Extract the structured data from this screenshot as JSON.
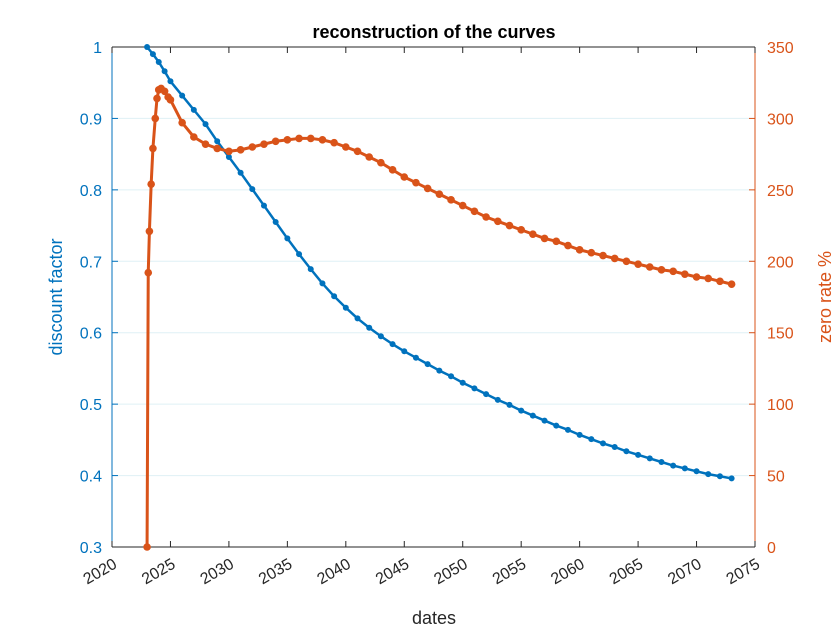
{
  "chart_data": {
    "type": "line",
    "title": "reconstruction of the curves",
    "xlabel": "dates",
    "ylabel_left": "discount factor",
    "ylabel_right": "zero rate %",
    "xlim": [
      2020,
      2075
    ],
    "ylim_left": [
      0.3,
      1
    ],
    "ylim_right": [
      0,
      350
    ],
    "xticks": [
      "2020",
      "2025",
      "2030",
      "2035",
      "2040",
      "2045",
      "2050",
      "2055",
      "2060",
      "2065",
      "2070",
      "2075"
    ],
    "yticks_left": [
      "0.3",
      "0.4",
      "0.5",
      "0.6",
      "0.7",
      "0.8",
      "0.9",
      "1"
    ],
    "yticks_right": [
      "0",
      "50",
      "100",
      "150",
      "200",
      "250",
      "300",
      "350"
    ],
    "grid": "horizontal",
    "colors": {
      "left": "#0072BD",
      "right": "#D95319"
    },
    "series": [
      {
        "axis": "left",
        "x": [
          2023.0,
          2023.5,
          2024.0,
          2024.5,
          2025.0,
          2026.0,
          2027.0,
          2028.0,
          2029.0,
          2030.0,
          2031.0,
          2032.0,
          2033.0,
          2034.0,
          2035.0,
          2036.0,
          2037.0,
          2038.0,
          2039.0,
          2040.0,
          2041.0,
          2042.0,
          2043.0,
          2044.0,
          2045.0,
          2046.0,
          2047.0,
          2048.0,
          2049.0,
          2050.0,
          2051.0,
          2052.0,
          2053.0,
          2054.0,
          2055.0,
          2056.0,
          2057.0,
          2058.0,
          2059.0,
          2060.0,
          2061.0,
          2062.0,
          2063.0,
          2064.0,
          2065.0,
          2066.0,
          2067.0,
          2068.0,
          2069.0,
          2070.0,
          2071.0,
          2072.0,
          2073.0
        ],
        "values": [
          1.0,
          0.99,
          0.979,
          0.966,
          0.952,
          0.932,
          0.912,
          0.892,
          0.868,
          0.846,
          0.824,
          0.801,
          0.778,
          0.755,
          0.732,
          0.71,
          0.689,
          0.669,
          0.651,
          0.635,
          0.62,
          0.607,
          0.595,
          0.584,
          0.574,
          0.565,
          0.556,
          0.547,
          0.539,
          0.53,
          0.522,
          0.514,
          0.506,
          0.499,
          0.491,
          0.484,
          0.477,
          0.47,
          0.464,
          0.457,
          0.451,
          0.445,
          0.44,
          0.434,
          0.429,
          0.424,
          0.419,
          0.414,
          0.41,
          0.406,
          0.402,
          0.399,
          0.396
        ]
      },
      {
        "axis": "right",
        "x": [
          2023.0,
          2023.1,
          2023.2,
          2023.35,
          2023.5,
          2023.7,
          2023.85,
          2024.0,
          2024.2,
          2024.5,
          2024.8,
          2025.0,
          2026.0,
          2027.0,
          2028.0,
          2029.0,
          2030.0,
          2031.0,
          2032.0,
          2033.0,
          2034.0,
          2035.0,
          2036.0,
          2037.0,
          2038.0,
          2039.0,
          2040.0,
          2041.0,
          2042.0,
          2043.0,
          2044.0,
          2045.0,
          2046.0,
          2047.0,
          2048.0,
          2049.0,
          2050.0,
          2051.0,
          2052.0,
          2053.0,
          2054.0,
          2055.0,
          2056.0,
          2057.0,
          2058.0,
          2059.0,
          2060.0,
          2061.0,
          2062.0,
          2063.0,
          2064.0,
          2065.0,
          2066.0,
          2067.0,
          2068.0,
          2069.0,
          2070.0,
          2071.0,
          2072.0,
          2073.0
        ],
        "values": [
          0,
          192,
          221,
          254,
          279,
          300,
          314,
          320,
          321,
          319,
          315,
          313,
          297,
          287,
          282,
          279,
          277,
          278,
          280,
          282,
          284,
          285,
          286,
          286,
          285,
          283,
          280,
          277,
          273,
          269,
          264,
          259,
          255,
          251,
          247,
          243,
          239,
          235,
          231,
          228,
          225,
          222,
          219,
          216,
          214,
          211,
          208,
          206,
          204,
          202,
          200,
          198,
          196,
          194,
          193,
          191,
          189,
          188,
          186,
          184
        ]
      }
    ]
  }
}
